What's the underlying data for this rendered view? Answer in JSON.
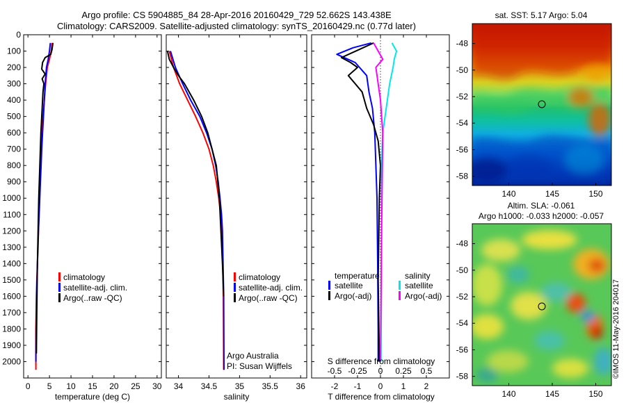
{
  "figure": {
    "title_line1": "Argo profile: CS 5904885_84 28-Apr-2016 20160429_729 52.662S 143.438E",
    "title_line2": "Climatology: CARS2009. Satellite-adjusted climatology: synTS_20160429.nc (0.77d later)",
    "credit": "Argo Australia",
    "pi": "PI: Susan Wijffels",
    "watermark": "©IMOS 11-May-2016 204017"
  },
  "colors": {
    "climatology": "#ff0000",
    "satellite": "#0000ff",
    "argo": "#000000",
    "sat_salinity": "#00e8e8",
    "argo_salinity": "#ff00ff"
  },
  "chart_data": [
    {
      "id": "temperature",
      "type": "line",
      "xlabel": "temperature (deg C)",
      "ylabel": "",
      "xlim": [
        -1,
        31
      ],
      "ylim": [
        2100,
        0
      ],
      "xticks": [
        0,
        5,
        10,
        15,
        20,
        25,
        30
      ],
      "yticks": [
        0,
        100,
        200,
        300,
        400,
        500,
        600,
        700,
        800,
        900,
        1000,
        1100,
        1200,
        1300,
        1400,
        1500,
        1600,
        1700,
        1800,
        1900,
        2000
      ],
      "legend": {
        "position": "lower-left",
        "entries": [
          "climatology",
          "satellite-adj. clim.",
          "Argo(..raw -QC)"
        ]
      },
      "series": [
        {
          "name": "climatology",
          "color": "#ff0000",
          "x": [
            5.6,
            5.4,
            5.0,
            4.5,
            4.1,
            3.8,
            3.5,
            3.3,
            3.1,
            3.0,
            2.85,
            2.7,
            2.55,
            2.45,
            2.3,
            2.2,
            2.05,
            1.95,
            1.85,
            1.85
          ],
          "y": [
            50,
            100,
            150,
            200,
            300,
            400,
            500,
            600,
            700,
            800,
            900,
            1000,
            1100,
            1200,
            1300,
            1400,
            1500,
            1600,
            1800,
            2050
          ]
        },
        {
          "name": "satellite-adj. clim.",
          "color": "#0000ff",
          "x": [
            5.2,
            5.0,
            4.7,
            4.3,
            4.0,
            3.8,
            3.6,
            3.4,
            3.2,
            3.05,
            2.9,
            2.75,
            2.6,
            2.45,
            2.35,
            2.2,
            2.1,
            2.0,
            1.9,
            1.85
          ],
          "y": [
            50,
            100,
            150,
            200,
            300,
            400,
            500,
            600,
            700,
            800,
            900,
            1000,
            1100,
            1200,
            1300,
            1400,
            1500,
            1600,
            1800,
            2000
          ]
        },
        {
          "name": "Argo(..raw -QC)",
          "color": "#000000",
          "x": [
            5.8,
            5.6,
            5.3,
            4.0,
            3.4,
            3.2,
            4.0,
            3.3,
            3.7,
            3.5,
            3.3,
            3.0,
            2.5,
            2.2,
            2.05,
            1.95
          ],
          "y": [
            50,
            90,
            120,
            140,
            170,
            210,
            240,
            270,
            300,
            350,
            450,
            600,
            1000,
            1400,
            1700,
            1950
          ]
        }
      ]
    },
    {
      "id": "salinity",
      "type": "line",
      "xlabel": "salinity",
      "ylabel": "",
      "xlim": [
        33.8,
        36.1
      ],
      "ylim": [
        2100,
        0
      ],
      "xticks": [
        34,
        34.5,
        35,
        35.5,
        36
      ],
      "legend": {
        "position": "lower-right",
        "entries": [
          "climatology",
          "satellite-adj. clim.",
          "Argo(..raw -QC)"
        ]
      },
      "series": [
        {
          "name": "climatology",
          "color": "#ff0000",
          "x": [
            33.85,
            33.92,
            34.02,
            34.15,
            34.28,
            34.4,
            34.5,
            34.57,
            34.62,
            34.66,
            34.69,
            34.71,
            34.725,
            34.735,
            34.74
          ],
          "y": [
            100,
            200,
            300,
            400,
            500,
            600,
            700,
            800,
            900,
            1000,
            1100,
            1200,
            1400,
            1600,
            2050
          ]
        },
        {
          "name": "satellite-adj. clim.",
          "color": "#0000ff",
          "x": [
            33.87,
            33.95,
            34.07,
            34.2,
            34.35,
            34.46,
            34.55,
            34.61,
            34.65,
            34.68,
            34.705,
            34.72,
            34.73,
            34.74,
            34.745
          ],
          "y": [
            100,
            200,
            300,
            400,
            500,
            600,
            700,
            800,
            900,
            1000,
            1100,
            1200,
            1400,
            1600,
            2050
          ]
        },
        {
          "name": "Argo(..raw -QC)",
          "color": "#000000",
          "x": [
            33.82,
            33.85,
            33.92,
            34.0,
            34.1,
            34.25,
            34.38,
            34.48,
            34.55,
            34.62,
            34.67,
            34.72,
            34.74
          ],
          "y": [
            100,
            150,
            200,
            250,
            300,
            400,
            500,
            600,
            700,
            800,
            1000,
            1400,
            1600
          ]
        }
      ]
    },
    {
      "id": "difference",
      "type": "line",
      "xlabel": "T difference from climatology",
      "xlabel_top": "S difference from climatology",
      "xlim": [
        -3,
        3
      ],
      "ylim": [
        2100,
        0
      ],
      "xticks": [
        -2,
        -1,
        0,
        1,
        2
      ],
      "xtick_labels_bottom": [
        "-2",
        "-1",
        "0",
        "1",
        "2"
      ],
      "xtick_labels_top": [
        "-0.5",
        "-0.25",
        "0",
        "0.25",
        "0.5"
      ],
      "legend_left": {
        "heading": "temperature",
        "entries": [
          "satellite",
          "Argo(-adj)"
        ]
      },
      "legend_right": {
        "heading": "salinity",
        "entries": [
          "satellite",
          "Argo(-adj)"
        ]
      },
      "series": [
        {
          "name": "temperature satellite",
          "color": "#0000ff",
          "x": [
            -0.4,
            -1.2,
            -1.9,
            -1.1,
            -0.6,
            -0.5,
            -0.35,
            -0.25,
            -0.2,
            -0.15,
            -0.12,
            -0.1,
            -0.1
          ],
          "y": [
            50,
            80,
            120,
            170,
            250,
            350,
            450,
            600,
            800,
            1000,
            1400,
            1800,
            2000
          ]
        },
        {
          "name": "temperature Argo(-adj)",
          "color": "#000000",
          "x": [
            -0.3,
            -1.7,
            -1.3,
            -1.0,
            -1.4,
            -0.8,
            -0.6,
            -0.3,
            -0.1,
            0.0,
            -0.05,
            -0.1,
            -0.05
          ],
          "y": [
            50,
            140,
            170,
            200,
            250,
            350,
            450,
            550,
            650,
            800,
            1000,
            1500,
            2000
          ]
        },
        {
          "name": "salinity satellite",
          "color": "#00e8e8",
          "x": [
            0.5,
            0.7,
            0.6,
            0.55,
            0.4,
            0.3,
            0.2,
            0.1,
            0.05,
            0.05,
            0.02
          ],
          "y": [
            50,
            100,
            150,
            200,
            300,
            400,
            500,
            600,
            800,
            1200,
            2000
          ]
        },
        {
          "name": "salinity Argo(-adj)",
          "color": "#ff00ff",
          "x": [
            -0.3,
            -0.1,
            0.1,
            -0.2,
            -0.1,
            0.0,
            0.05,
            0.1,
            0.05,
            0.0
          ],
          "y": [
            50,
            100,
            150,
            200,
            300,
            400,
            500,
            600,
            1200,
            2000
          ]
        }
      ]
    },
    {
      "id": "sst-map",
      "type": "heatmap",
      "title": "sat. SST: 5.17 Argo: 5.04",
      "xticks": [
        140,
        145,
        150
      ],
      "yticks": [
        -48,
        -50,
        -52,
        -54,
        -56,
        -58
      ],
      "xlim": [
        135.8,
        151.8
      ],
      "ylim": [
        -58.7,
        -46.5
      ],
      "marker": {
        "lon": 143.438,
        "lat": -52.662
      }
    },
    {
      "id": "sla-map",
      "type": "heatmap",
      "title": "Altim. SLA: -0.061",
      "subtitle": "Argo h1000: -0.033 h2000: -0.057",
      "xticks": [
        140,
        145,
        150
      ],
      "yticks": [
        -48,
        -50,
        -52,
        -54,
        -56,
        -58
      ],
      "xlim": [
        135.8,
        151.8
      ],
      "ylim": [
        -58.7,
        -46.5
      ],
      "marker": {
        "lon": 143.438,
        "lat": -52.662
      }
    }
  ]
}
